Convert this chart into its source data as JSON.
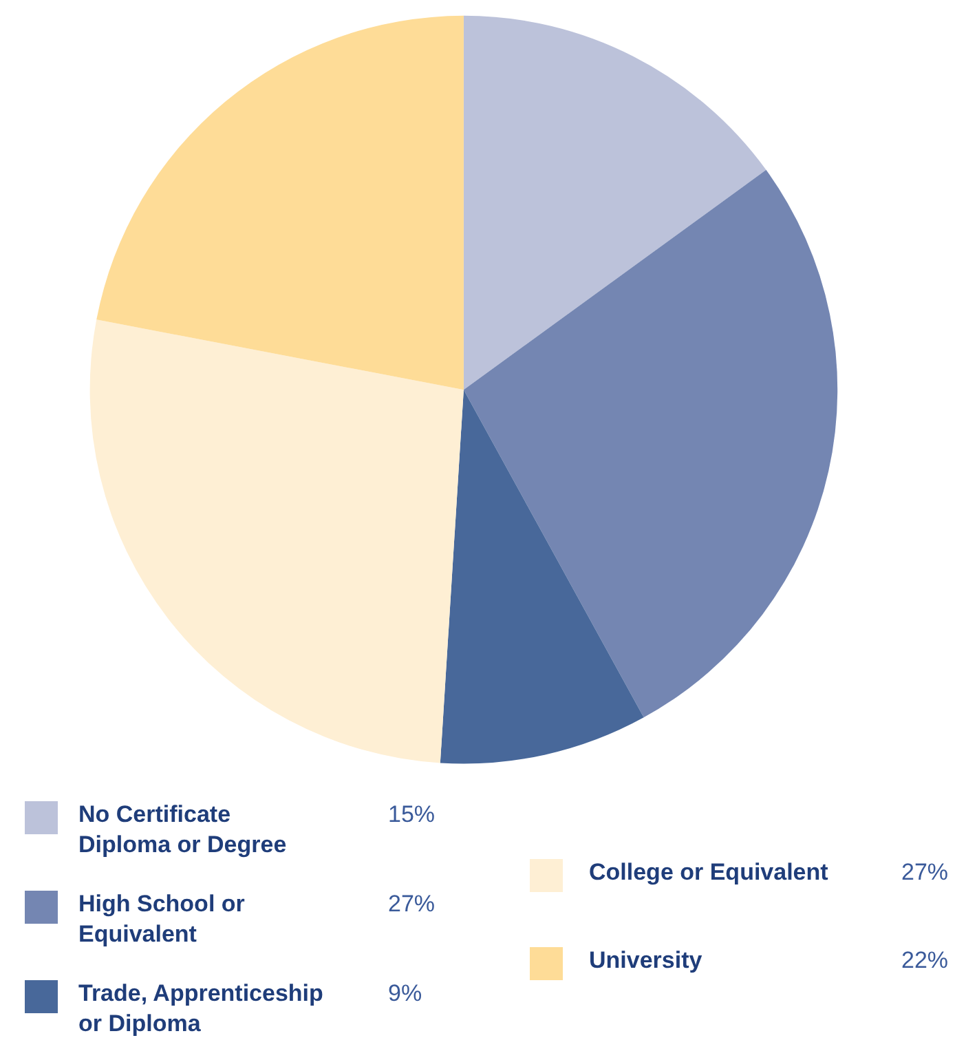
{
  "chart_data": {
    "type": "pie",
    "categories": [
      "No Certificate Diploma or Degree",
      "High School or Equivalent",
      "Trade, Apprenticeship or Diploma",
      "College or Equivalent",
      "University"
    ],
    "values": [
      15,
      27,
      9,
      27,
      22
    ],
    "colors": [
      "#bcc2da",
      "#7486b2",
      "#48689a",
      "#feefd4",
      "#fedc97"
    ],
    "value_labels": [
      "15%",
      "27%",
      "9%",
      "27%",
      "22%"
    ],
    "legend": "bottom"
  }
}
